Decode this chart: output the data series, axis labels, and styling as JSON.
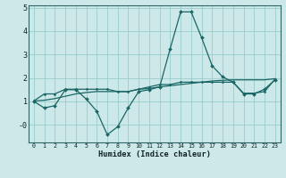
{
  "xlabel": "Humidex (Indice chaleur)",
  "bg_color": "#cce8e8",
  "grid_color": "#99cccc",
  "line_color": "#1a6666",
  "line1_x": [
    0,
    1,
    2,
    3,
    4,
    5,
    6,
    7,
    8,
    9,
    10,
    11,
    12,
    13,
    14,
    15,
    16,
    17,
    18,
    19,
    20,
    21,
    22,
    23
  ],
  "line1_y": [
    1.0,
    0.72,
    0.82,
    1.5,
    1.5,
    1.1,
    0.58,
    -0.42,
    -0.08,
    0.72,
    1.42,
    1.5,
    1.62,
    3.25,
    4.82,
    4.82,
    3.72,
    2.52,
    2.05,
    1.82,
    1.32,
    1.32,
    1.52,
    1.92
  ],
  "line2_x": [
    0,
    1,
    2,
    3,
    4,
    5,
    6,
    7,
    8,
    9,
    10,
    11,
    12,
    13,
    14,
    15,
    16,
    17,
    18,
    19,
    20,
    21,
    22,
    23
  ],
  "line2_y": [
    1.02,
    1.32,
    1.32,
    1.52,
    1.52,
    1.52,
    1.52,
    1.52,
    1.42,
    1.42,
    1.52,
    1.62,
    1.72,
    1.72,
    1.82,
    1.82,
    1.82,
    1.82,
    1.82,
    1.82,
    1.35,
    1.35,
    1.42,
    1.95
  ],
  "line3_x": [
    0,
    1,
    2,
    3,
    4,
    5,
    6,
    7,
    8,
    9,
    10,
    11,
    12,
    13,
    14,
    15,
    16,
    17,
    18,
    19,
    20,
    21,
    22,
    23
  ],
  "line3_y": [
    1.02,
    1.05,
    1.12,
    1.22,
    1.32,
    1.38,
    1.42,
    1.42,
    1.42,
    1.42,
    1.52,
    1.55,
    1.62,
    1.67,
    1.72,
    1.77,
    1.82,
    1.87,
    1.9,
    1.92,
    1.92,
    1.92,
    1.92,
    1.97
  ],
  "yticks": [
    0,
    1,
    2,
    3,
    4,
    5
  ],
  "ytick_labels": [
    "-0",
    "1",
    "2",
    "3",
    "4",
    "5"
  ],
  "xtick_labels": [
    "0",
    "1",
    "2",
    "3",
    "4",
    "5",
    "6",
    "7",
    "8",
    "9",
    "10",
    "11",
    "12",
    "13",
    "14",
    "15",
    "16",
    "17",
    "18",
    "19",
    "20",
    "21",
    "22",
    "23"
  ],
  "xlim": [
    -0.5,
    23.5
  ],
  "ylim": [
    -0.75,
    5.1
  ]
}
